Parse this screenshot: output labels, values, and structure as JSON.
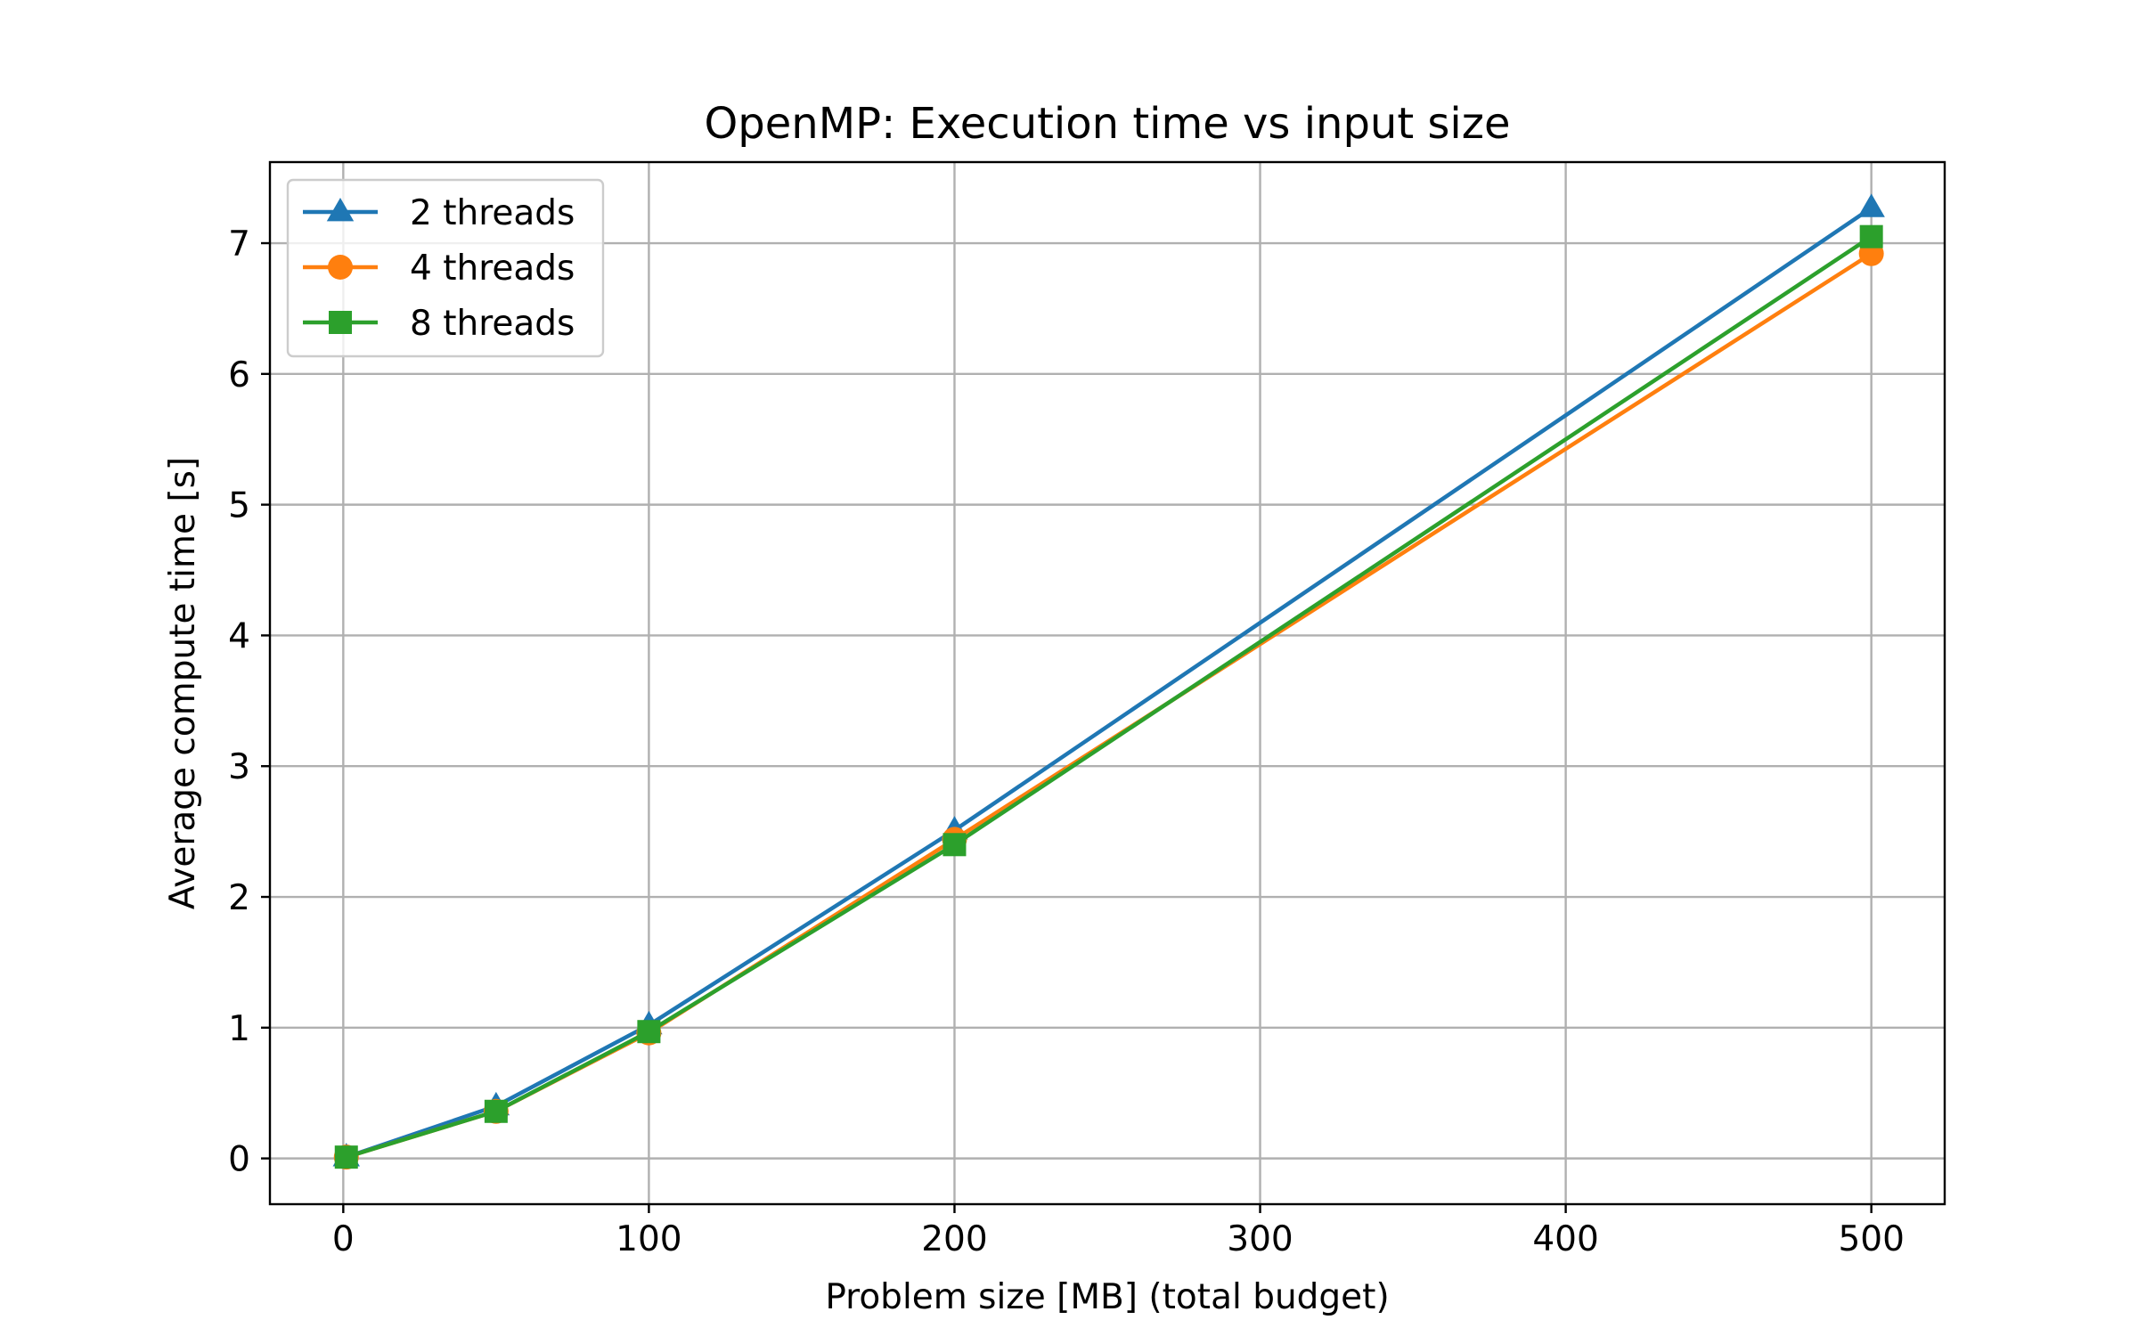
{
  "chart_data": {
    "type": "line",
    "title": "OpenMP: Execution time vs input size",
    "xlabel": "Problem size [MB] (total budget)",
    "ylabel": "Average compute time [s]",
    "xlim": [
      -24,
      524
    ],
    "ylim": [
      -0.35,
      7.62
    ],
    "xticks": [
      0,
      100,
      200,
      300,
      400,
      500
    ],
    "yticks": [
      0,
      1,
      2,
      3,
      4,
      5,
      6,
      7
    ],
    "x": [
      1,
      50,
      100,
      200,
      500
    ],
    "grid": true,
    "legend_position": "top-left",
    "series": [
      {
        "name": "2 threads",
        "marker": "triangle",
        "color": "#1f77b4",
        "values": [
          0.01,
          0.4,
          1.02,
          2.51,
          7.27
        ]
      },
      {
        "name": "4 threads",
        "marker": "circle",
        "color": "#ff7f0e",
        "values": [
          0.01,
          0.36,
          0.96,
          2.44,
          6.92
        ]
      },
      {
        "name": "8 threads",
        "marker": "square",
        "color": "#2ca02c",
        "values": [
          0.01,
          0.36,
          0.97,
          2.4,
          7.05
        ]
      }
    ]
  }
}
